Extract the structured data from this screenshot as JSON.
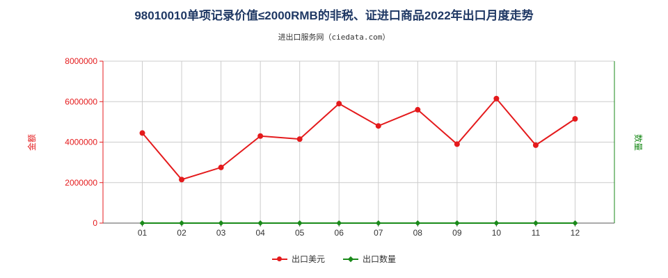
{
  "title": "98010010单项记录价值≤2000RMB的非税、证进口商品2022年出口月度走势",
  "subtitle": "进出口服务网（ciedata.com）",
  "colors": {
    "amount": "#e41a1c",
    "quantity": "#1a8a1a",
    "grid": "#cccccc"
  },
  "chart_data": {
    "type": "line",
    "categories": [
      "01",
      "02",
      "03",
      "04",
      "05",
      "06",
      "07",
      "08",
      "09",
      "10",
      "11",
      "12"
    ],
    "ylabel_left": "金额",
    "ylabel_right": "数量",
    "ylim": [
      0,
      8000000
    ],
    "yticks": [
      "0",
      "2000000",
      "4000000",
      "6000000",
      "8000000"
    ],
    "grid": true,
    "legend_position": "bottom",
    "series": [
      {
        "name": "出口美元",
        "axis": "left",
        "values": [
          4450000,
          2150000,
          2750000,
          4300000,
          4150000,
          5900000,
          4800000,
          5600000,
          3900000,
          6150000,
          3850000,
          5150000
        ]
      },
      {
        "name": "出口数量",
        "axis": "right",
        "values": [
          0,
          0,
          0,
          0,
          0,
          0,
          0,
          0,
          0,
          0,
          0,
          0
        ]
      }
    ]
  }
}
